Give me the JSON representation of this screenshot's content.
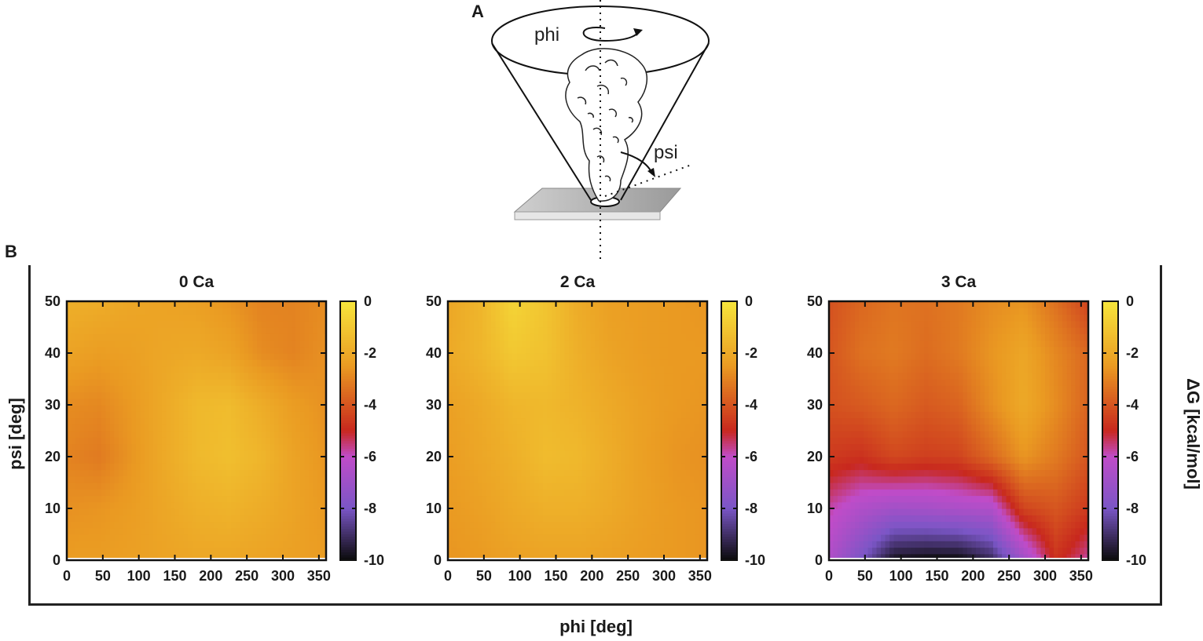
{
  "panels": {
    "a_label": "A",
    "b_label": "B"
  },
  "schematic": {
    "phi_label": "phi",
    "psi_label": "psi"
  },
  "axis_titles": {
    "x": "phi [deg]",
    "y": "psi [deg]",
    "colorbar": "ΔG [kcal/mol]"
  },
  "colors": {
    "yellow": "#f7e63c",
    "orange": "#ea9a22",
    "red": "#c8281e",
    "magenta": "#c04cc8",
    "purple": "#7a56c6",
    "black": "#0a0a0a"
  },
  "chart_data": [
    {
      "type": "heatmap",
      "title": "0 Ca",
      "xlabel": "phi [deg]",
      "ylabel": "psi [deg]",
      "colorbar_label": "ΔG [kcal/mol]",
      "xlim": [
        0,
        360
      ],
      "ylim": [
        0,
        50
      ],
      "clim": [
        -10,
        0
      ],
      "x_ticks": [
        0,
        50,
        100,
        150,
        200,
        250,
        300,
        350
      ],
      "y_ticks": [
        0,
        10,
        20,
        30,
        40,
        50
      ],
      "colorbar_ticks": [
        0,
        -2,
        -4,
        -6,
        -8,
        -10
      ],
      "x": [
        0,
        45,
        90,
        135,
        180,
        225,
        270,
        315,
        360
      ],
      "y": [
        0,
        10,
        20,
        30,
        40,
        50
      ],
      "z": [
        [
          -2.4,
          -2.4,
          -2.3,
          -2.2,
          -2.1,
          -2.1,
          -2.2,
          -2.3,
          -2.4
        ],
        [
          -2.7,
          -2.6,
          -2.4,
          -2.1,
          -1.8,
          -1.7,
          -1.9,
          -2.2,
          -2.5
        ],
        [
          -3.0,
          -3.2,
          -2.6,
          -2.0,
          -1.5,
          -1.3,
          -1.6,
          -2.2,
          -2.6
        ],
        [
          -2.8,
          -2.9,
          -2.5,
          -2.0,
          -1.5,
          -1.4,
          -1.9,
          -2.4,
          -2.7
        ],
        [
          -2.2,
          -2.4,
          -2.3,
          -2.1,
          -2.0,
          -2.2,
          -2.8,
          -3.0,
          -2.7
        ],
        [
          -1.8,
          -1.9,
          -2.1,
          -2.2,
          -2.3,
          -2.6,
          -3.0,
          -3.0,
          -2.8
        ]
      ]
    },
    {
      "type": "heatmap",
      "title": "2 Ca",
      "xlabel": "phi [deg]",
      "ylabel": "psi [deg]",
      "colorbar_label": "ΔG [kcal/mol]",
      "xlim": [
        0,
        360
      ],
      "ylim": [
        0,
        50
      ],
      "clim": [
        -10,
        0
      ],
      "x_ticks": [
        0,
        50,
        100,
        150,
        200,
        250,
        300,
        350
      ],
      "y_ticks": [
        0,
        10,
        20,
        30,
        40,
        50
      ],
      "colorbar_ticks": [
        0,
        -2,
        -4,
        -6,
        -8,
        -10
      ],
      "x": [
        0,
        45,
        90,
        135,
        180,
        225,
        270,
        315,
        360
      ],
      "y": [
        0,
        10,
        20,
        30,
        40,
        50
      ],
      "z": [
        [
          -2.6,
          -2.5,
          -2.3,
          -2.2,
          -2.2,
          -2.3,
          -2.4,
          -2.5,
          -2.6
        ],
        [
          -2.5,
          -2.3,
          -2.0,
          -1.8,
          -1.8,
          -2.0,
          -2.3,
          -2.5,
          -2.6
        ],
        [
          -2.4,
          -2.1,
          -1.8,
          -1.4,
          -1.5,
          -1.9,
          -2.3,
          -2.6,
          -2.7
        ],
        [
          -2.3,
          -2.0,
          -1.6,
          -1.5,
          -1.7,
          -2.0,
          -2.3,
          -2.5,
          -2.6
        ],
        [
          -2.0,
          -1.6,
          -1.0,
          -1.2,
          -1.8,
          -2.2,
          -2.4,
          -2.5,
          -2.5
        ],
        [
          -2.1,
          -1.6,
          -0.6,
          -1.1,
          -1.9,
          -2.3,
          -2.4,
          -2.5,
          -2.6
        ]
      ]
    },
    {
      "type": "heatmap",
      "title": "3 Ca",
      "xlabel": "phi [deg]",
      "ylabel": "psi [deg]",
      "colorbar_label": "ΔG [kcal/mol]",
      "xlim": [
        0,
        360
      ],
      "ylim": [
        0,
        50
      ],
      "clim": [
        -10,
        0
      ],
      "x_ticks": [
        0,
        50,
        100,
        150,
        200,
        250,
        300,
        350
      ],
      "y_ticks": [
        0,
        10,
        20,
        30,
        40,
        50
      ],
      "colorbar_ticks": [
        0,
        -2,
        -4,
        -6,
        -8,
        -10
      ],
      "x": [
        0,
        45,
        90,
        135,
        180,
        225,
        270,
        315,
        360
      ],
      "y": [
        0,
        10,
        20,
        30,
        40,
        50
      ],
      "z": [
        [
          -6.5,
          -8.0,
          -9.8,
          -10.0,
          -10.0,
          -9.2,
          -7.0,
          -4.8,
          -5.8
        ],
        [
          -5.8,
          -6.5,
          -6.9,
          -6.8,
          -6.6,
          -6.5,
          -4.4,
          -4.0,
          -4.6
        ],
        [
          -4.6,
          -4.8,
          -4.3,
          -4.5,
          -4.4,
          -3.6,
          -2.6,
          -3.2,
          -4.0
        ],
        [
          -4.1,
          -3.9,
          -3.6,
          -3.9,
          -3.7,
          -2.8,
          -2.0,
          -2.8,
          -3.7
        ],
        [
          -4.0,
          -3.4,
          -3.2,
          -3.5,
          -3.2,
          -2.6,
          -2.1,
          -2.9,
          -3.6
        ],
        [
          -4.1,
          -3.6,
          -3.3,
          -3.4,
          -3.2,
          -2.8,
          -2.6,
          -3.4,
          -4.4
        ]
      ]
    }
  ]
}
